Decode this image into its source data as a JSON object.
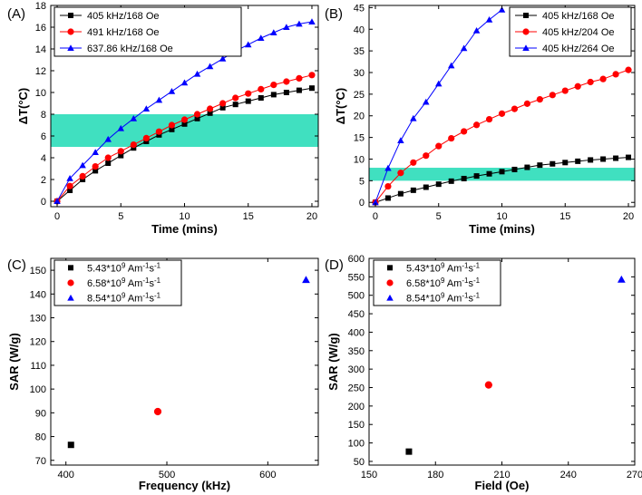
{
  "chart_data": [
    {
      "panel": "(A)",
      "type": "line",
      "xlabel": "Time (mins)",
      "ylabel": "ΔT(°C)",
      "xlim": [
        -0.5,
        20.5
      ],
      "ylim": [
        -0.5,
        18
      ],
      "xticks": [
        0,
        5,
        10,
        15,
        20
      ],
      "yticks": [
        0,
        2,
        4,
        6,
        8,
        10,
        12,
        14,
        16,
        18
      ],
      "band": [
        5,
        8
      ],
      "band_color": "#40e0c0",
      "legend_position": "top-left",
      "series": [
        {
          "name": "405 kHz/168 Oe",
          "color": "#000000",
          "marker": "square",
          "x": [
            0,
            1,
            2,
            3,
            4,
            5,
            6,
            7,
            8,
            9,
            10,
            11,
            12,
            13,
            14,
            15,
            16,
            17,
            18,
            19,
            20
          ],
          "y": [
            0,
            1.0,
            2.0,
            2.8,
            3.5,
            4.2,
            4.9,
            5.5,
            6.1,
            6.6,
            7.1,
            7.6,
            8.1,
            8.6,
            8.9,
            9.2,
            9.5,
            9.8,
            10.0,
            10.2,
            10.4
          ]
        },
        {
          "name": "491 kHz/168 Oe",
          "color": "#ff0000",
          "marker": "circle",
          "x": [
            0,
            1,
            2,
            3,
            4,
            5,
            6,
            7,
            8,
            9,
            10,
            11,
            12,
            13,
            14,
            15,
            16,
            17,
            18,
            19,
            20
          ],
          "y": [
            0,
            1.4,
            2.3,
            3.2,
            4.0,
            4.6,
            5.2,
            5.8,
            6.4,
            7.0,
            7.5,
            8.0,
            8.5,
            9.0,
            9.5,
            9.9,
            10.3,
            10.7,
            11.0,
            11.3,
            11.6
          ]
        },
        {
          "name": "637.86 kHz/168 Oe",
          "color": "#0000ff",
          "marker": "triangle",
          "x": [
            0,
            1,
            2,
            3,
            4,
            5,
            6,
            7,
            8,
            9,
            10,
            11,
            12,
            13,
            14,
            15,
            16,
            17,
            18,
            19,
            20
          ],
          "y": [
            0,
            2.1,
            3.3,
            4.5,
            5.7,
            6.7,
            7.6,
            8.5,
            9.3,
            10.1,
            10.9,
            11.7,
            12.4,
            13.1,
            13.8,
            14.4,
            15.0,
            15.5,
            16.0,
            16.3,
            16.5
          ]
        }
      ]
    },
    {
      "panel": "(B)",
      "type": "line",
      "xlabel": "Time (mins)",
      "ylabel": "ΔT(°C)",
      "xlim": [
        -0.5,
        20.5
      ],
      "ylim": [
        -1,
        45.5
      ],
      "xticks": [
        0,
        5,
        10,
        15,
        20
      ],
      "yticks": [
        0,
        5,
        10,
        15,
        20,
        25,
        30,
        35,
        40,
        45
      ],
      "band": [
        5,
        8
      ],
      "band_color": "#40e0c0",
      "legend_position": "top-right",
      "series": [
        {
          "name": "405 kHz/168 Oe",
          "color": "#000000",
          "marker": "square",
          "x": [
            0,
            1,
            2,
            3,
            4,
            5,
            6,
            7,
            8,
            9,
            10,
            11,
            12,
            13,
            14,
            15,
            16,
            17,
            18,
            19,
            20
          ],
          "y": [
            0,
            1.0,
            2.0,
            2.8,
            3.5,
            4.2,
            4.9,
            5.5,
            6.1,
            6.6,
            7.1,
            7.6,
            8.1,
            8.6,
            8.9,
            9.2,
            9.5,
            9.8,
            10.0,
            10.2,
            10.4
          ]
        },
        {
          "name": "405 kHz/204 Oe",
          "color": "#ff0000",
          "marker": "circle",
          "x": [
            0,
            1,
            2,
            3,
            4,
            5,
            6,
            7,
            8,
            9,
            10,
            11,
            12,
            13,
            14,
            15,
            16,
            17,
            18,
            19,
            20
          ],
          "y": [
            0,
            3.7,
            6.8,
            9.2,
            10.8,
            13.0,
            14.8,
            16.4,
            17.9,
            19.2,
            20.5,
            21.6,
            22.8,
            23.8,
            24.8,
            25.8,
            26.8,
            27.8,
            28.5,
            29.6,
            30.6
          ]
        },
        {
          "name": "405 kHz/264 Oe",
          "color": "#0000ff",
          "marker": "triangle",
          "x": [
            0,
            1,
            2,
            3,
            4,
            5,
            6,
            7,
            8,
            9,
            10
          ],
          "y": [
            0,
            7.9,
            14.3,
            19.4,
            23.2,
            27.4,
            31.6,
            35.6,
            39.7,
            42.2,
            44.5
          ]
        }
      ]
    },
    {
      "panel": "(C)",
      "type": "scatter",
      "xlabel": "Frequency (kHz)",
      "ylabel": "SAR (W/g)",
      "xlim": [
        385,
        650
      ],
      "ylim": [
        68,
        155
      ],
      "xticks": [
        400,
        500,
        600
      ],
      "yticks": [
        70,
        80,
        90,
        100,
        110,
        120,
        130,
        140,
        150
      ],
      "legend_position": "top-left",
      "series": [
        {
          "name": "5.43*10",
          "sup": "9",
          "unit": " Am",
          "sup2": "-1",
          "unit2": "s",
          "sup3": "-1",
          "color": "#000000",
          "marker": "square",
          "x": [
            405
          ],
          "y": [
            76.5
          ]
        },
        {
          "name": "6.58*10",
          "sup": "9",
          "unit": " Am",
          "sup2": "-1",
          "unit2": "s",
          "sup3": "-1",
          "color": "#ff0000",
          "marker": "circle",
          "x": [
            491
          ],
          "y": [
            90.5
          ]
        },
        {
          "name": "8.54*10",
          "sup": "9",
          "unit": " Am",
          "sup2": "-1",
          "unit2": "s",
          "sup3": "-1",
          "color": "#0000ff",
          "marker": "triangle",
          "x": [
            637.86
          ],
          "y": [
            146
          ]
        }
      ]
    },
    {
      "panel": "(D)",
      "type": "scatter",
      "xlabel": "Field (Oe)",
      "ylabel": "SAR (W/g)",
      "xlim": [
        150,
        270
      ],
      "ylim": [
        40,
        600
      ],
      "xticks": [
        150,
        180,
        210,
        240,
        270
      ],
      "yticks": [
        50,
        100,
        150,
        200,
        250,
        300,
        350,
        400,
        450,
        500,
        550,
        600
      ],
      "legend_position": "top-left",
      "series": [
        {
          "name": "5.43*10",
          "sup": "9",
          "unit": " Am",
          "sup2": "-1",
          "unit2": "s",
          "sup3": "-1",
          "color": "#000000",
          "marker": "square",
          "x": [
            168
          ],
          "y": [
            76.5
          ]
        },
        {
          "name": "6.58*10",
          "sup": "9",
          "unit": " Am",
          "sup2": "-1",
          "unit2": "s",
          "sup3": "-1",
          "color": "#ff0000",
          "marker": "circle",
          "x": [
            204
          ],
          "y": [
            257
          ]
        },
        {
          "name": "8.54*10",
          "sup": "9",
          "unit": " Am",
          "sup2": "-1",
          "unit2": "s",
          "sup3": "-1",
          "color": "#0000ff",
          "marker": "triangle",
          "x": [
            264
          ],
          "y": [
            543
          ]
        }
      ]
    }
  ]
}
